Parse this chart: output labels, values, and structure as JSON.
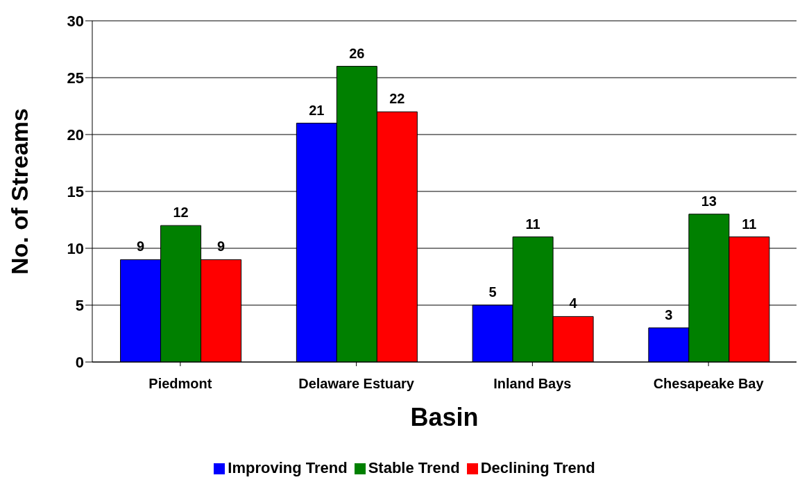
{
  "chart_data": {
    "type": "bar",
    "xlabel": "Basin",
    "ylabel": "No. of Streams",
    "categories": [
      "Piedmont",
      "Delaware Estuary",
      "Inland Bays",
      "Chesapeake Bay"
    ],
    "series": [
      {
        "name": "Improving Trend",
        "color": "#0000ff",
        "values": [
          9,
          21,
          5,
          3
        ]
      },
      {
        "name": "Stable Trend",
        "color": "#008000",
        "values": [
          12,
          26,
          11,
          13
        ]
      },
      {
        "name": "Declining Trend",
        "color": "#ff0000",
        "values": [
          9,
          22,
          4,
          11
        ]
      }
    ],
    "ylim": [
      0,
      30
    ],
    "yticks": [
      0,
      5,
      10,
      15,
      20,
      25,
      30
    ],
    "grid": "y",
    "legend": "bottom",
    "data_labels": true
  }
}
